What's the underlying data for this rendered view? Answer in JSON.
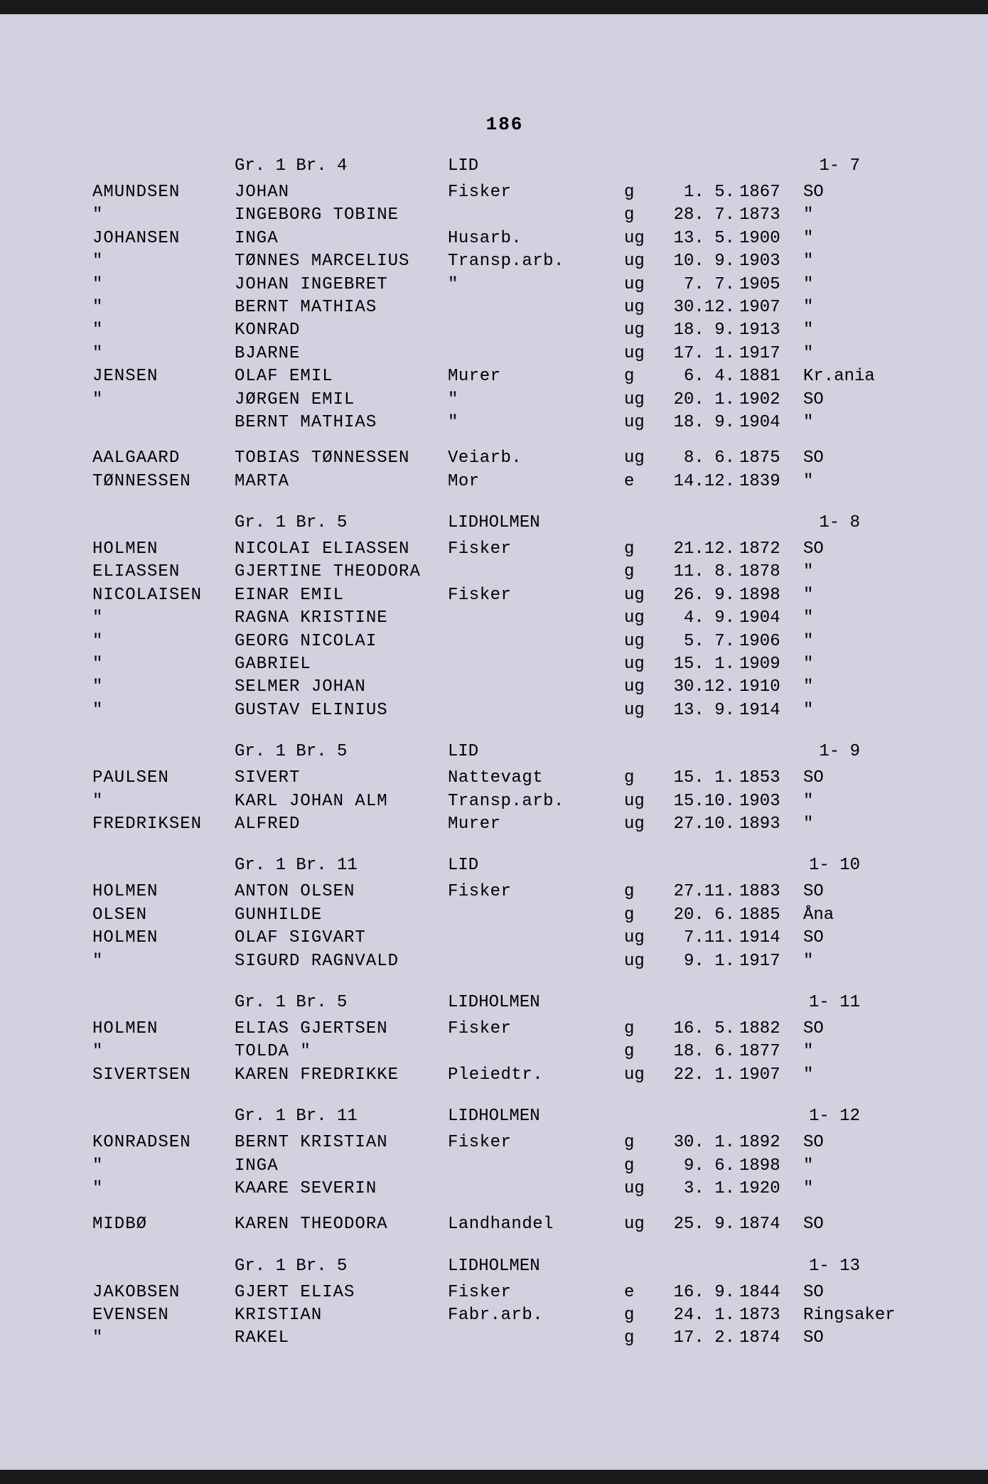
{
  "page_number": "186",
  "background_color": "#d4d0e0",
  "text_color": "#1e1e2e",
  "font_family": "Courier New",
  "font_size": 24,
  "sections": [
    {
      "header": {
        "gr_br": "Gr. 1 Br. 4",
        "location": "LID",
        "idx": "1- 7"
      },
      "rows": [
        {
          "surname": "AMUNDSEN",
          "given": "JOHAN",
          "occ": "Fisker",
          "status": "g",
          "date": " 1.  5.",
          "year": "1867",
          "place": "SO"
        },
        {
          "surname": "\"",
          "given": "INGEBORG TOBINE",
          "occ": "",
          "status": "g",
          "date": "28.  7.",
          "year": "1873",
          "place": "\""
        },
        {
          "surname": "JOHANSEN",
          "given": "INGA",
          "occ": "Husarb.",
          "status": "ug",
          "date": "13.  5.",
          "year": "1900",
          "place": "\""
        },
        {
          "surname": "\"",
          "given": "TØNNES MARCELIUS",
          "occ": "Transp.arb.",
          "status": "ug",
          "date": "10.  9.",
          "year": "1903",
          "place": "\""
        },
        {
          "surname": "\"",
          "given": "JOHAN INGEBRET",
          "occ": "\"",
          "status": "ug",
          "date": " 7.  7.",
          "year": "1905",
          "place": "\""
        },
        {
          "surname": "\"",
          "given": "BERNT MATHIAS",
          "occ": "",
          "status": "ug",
          "date": "30.12.",
          "year": "1907",
          "place": "\""
        },
        {
          "surname": "\"",
          "given": "KONRAD",
          "occ": "",
          "status": "ug",
          "date": "18.  9.",
          "year": "1913",
          "place": "\""
        },
        {
          "surname": "\"",
          "given": "BJARNE",
          "occ": "",
          "status": "ug",
          "date": "17.  1.",
          "year": "1917",
          "place": "\""
        },
        {
          "surname": "JENSEN",
          "given": "OLAF EMIL",
          "occ": "Murer",
          "status": "g",
          "date": " 6.  4.",
          "year": "1881",
          "place": "Kr.ania"
        },
        {
          "surname": "\"",
          "given": "JØRGEN EMIL",
          "occ": "\"",
          "status": "ug",
          "date": "20.  1.",
          "year": "1902",
          "place": "SO"
        },
        {
          "surname": "",
          "given": "BERNT MATHIAS",
          "occ": "\"",
          "status": "ug",
          "date": "18.  9.",
          "year": "1904",
          "place": "\""
        }
      ],
      "gap_after": true,
      "extra_rows": [
        {
          "surname": "AALGAARD",
          "given": "TOBIAS TØNNESSEN",
          "occ": "Veiarb.",
          "status": "ug",
          "date": " 8.  6.",
          "year": "1875",
          "place": "SO"
        },
        {
          "surname": "TØNNESSEN",
          "given": "MARTA",
          "occ": "Mor",
          "status": "e",
          "date": "14.12.",
          "year": "1839",
          "place": "\""
        }
      ]
    },
    {
      "header": {
        "gr_br": "Gr. 1 Br. 5",
        "location": "LIDHOLMEN",
        "idx": "1- 8"
      },
      "rows": [
        {
          "surname": "HOLMEN",
          "given": "NICOLAI ELIASSEN",
          "occ": "Fisker",
          "status": "g",
          "date": "21.12.",
          "year": "1872",
          "place": "SO"
        },
        {
          "surname": "ELIASSEN",
          "given": "GJERTINE THEODORA",
          "occ": "",
          "status": "g",
          "date": "11.  8.",
          "year": "1878",
          "place": "\""
        },
        {
          "surname": "NICOLAISEN",
          "given": "EINAR EMIL",
          "occ": "Fisker",
          "status": "ug",
          "date": "26.  9.",
          "year": "1898",
          "place": "\""
        },
        {
          "surname": "\"",
          "given": "RAGNA KRISTINE",
          "occ": "",
          "status": "ug",
          "date": " 4.  9.",
          "year": "1904",
          "place": "\""
        },
        {
          "surname": "\"",
          "given": "GEORG NICOLAI",
          "occ": "",
          "status": "ug",
          "date": " 5.  7.",
          "year": "1906",
          "place": "\""
        },
        {
          "surname": "\"",
          "given": "GABRIEL",
          "occ": "",
          "status": "ug",
          "date": "15.  1.",
          "year": "1909",
          "place": "\""
        },
        {
          "surname": "\"",
          "given": "SELMER JOHAN",
          "occ": "",
          "status": "ug",
          "date": "30.12.",
          "year": "1910",
          "place": "\""
        },
        {
          "surname": "\"",
          "given": "GUSTAV ELINIUS",
          "occ": "",
          "status": "ug",
          "date": "13.  9.",
          "year": "1914",
          "place": "\""
        }
      ]
    },
    {
      "header": {
        "gr_br": "Gr. 1 Br. 5",
        "location": "LID",
        "idx": "1- 9"
      },
      "rows": [
        {
          "surname": "PAULSEN",
          "given": "SIVERT",
          "occ": "Nattevagt",
          "status": "g",
          "date": "15.  1.",
          "year": "1853",
          "place": "SO"
        },
        {
          "surname": "\"",
          "given": "KARL JOHAN ALM",
          "occ": "Transp.arb.",
          "status": "ug",
          "date": "15.10.",
          "year": "1903",
          "place": "\""
        },
        {
          "surname": "FREDRIKSEN",
          "given": "ALFRED",
          "occ": "Murer",
          "status": "ug",
          "date": "27.10.",
          "year": "1893",
          "place": "\""
        }
      ]
    },
    {
      "header": {
        "gr_br": "Gr. 1 Br. 11",
        "location": "LID",
        "idx": "1- 10"
      },
      "rows": [
        {
          "surname": "HOLMEN",
          "given": "ANTON OLSEN",
          "occ": "Fisker",
          "status": "g",
          "date": "27.11.",
          "year": "1883",
          "place": "SO"
        },
        {
          "surname": "OLSEN",
          "given": "GUNHILDE",
          "occ": "",
          "status": "g",
          "date": "20.  6.",
          "year": "1885",
          "place": "Åna"
        },
        {
          "surname": "HOLMEN",
          "given": "OLAF SIGVART",
          "occ": "",
          "status": "ug",
          "date": " 7.11.",
          "year": "1914",
          "place": "SO"
        },
        {
          "surname": "\"",
          "given": "SIGURD RAGNVALD",
          "occ": "",
          "status": "ug",
          "date": " 9.  1.",
          "year": "1917",
          "place": "\""
        }
      ]
    },
    {
      "header": {
        "gr_br": "Gr. 1 Br. 5",
        "location": "LIDHOLMEN",
        "idx": "1- 11"
      },
      "rows": [
        {
          "surname": "HOLMEN",
          "given": "ELIAS GJERTSEN",
          "occ": "Fisker",
          "status": "g",
          "date": "16.  5.",
          "year": "1882",
          "place": "SO"
        },
        {
          "surname": "\"",
          "given": "TOLDA    \"",
          "occ": "",
          "status": "g",
          "date": "18.  6.",
          "year": "1877",
          "place": "\""
        },
        {
          "surname": "SIVERTSEN",
          "given": "KAREN FREDRIKKE",
          "occ": "Pleiedtr.",
          "status": "ug",
          "date": "22.  1.",
          "year": "1907",
          "place": "\""
        }
      ]
    },
    {
      "header": {
        "gr_br": "Gr. 1 Br. 11",
        "location": "LIDHOLMEN",
        "idx": "1- 12"
      },
      "rows": [
        {
          "surname": "KONRADSEN",
          "given": "BERNT KRISTIAN",
          "occ": "Fisker",
          "status": "g",
          "date": "30.  1.",
          "year": "1892",
          "place": "SO"
        },
        {
          "surname": "\"",
          "given": "INGA",
          "occ": "",
          "status": "g",
          "date": " 9.  6.",
          "year": "1898",
          "place": "\""
        },
        {
          "surname": "\"",
          "given": "KAARE SEVERIN",
          "occ": "",
          "status": "ug",
          "date": " 3.  1.",
          "year": "1920",
          "place": "\""
        }
      ],
      "gap_after": true,
      "extra_rows": [
        {
          "surname": "MIDBØ",
          "given": "KAREN THEODORA",
          "occ": "Landhandel",
          "status": "ug",
          "date": "25.  9.",
          "year": "1874",
          "place": "SO"
        }
      ]
    },
    {
      "header": {
        "gr_br": "Gr. 1 Br. 5",
        "location": "LIDHOLMEN",
        "idx": "1- 13"
      },
      "rows": [
        {
          "surname": "JAKOBSEN",
          "given": "GJERT ELIAS",
          "occ": "Fisker",
          "status": "e",
          "date": "16.  9.",
          "year": "1844",
          "place": "SO"
        },
        {
          "surname": "EVENSEN",
          "given": "KRISTIAN",
          "occ": "Fabr.arb.",
          "status": "g",
          "date": "24.  1.",
          "year": "1873",
          "place": "Ringsaker"
        },
        {
          "surname": "\"",
          "given": "RAKEL",
          "occ": "",
          "status": "g",
          "date": "17.  2.",
          "year": "1874",
          "place": "SO"
        }
      ]
    }
  ]
}
